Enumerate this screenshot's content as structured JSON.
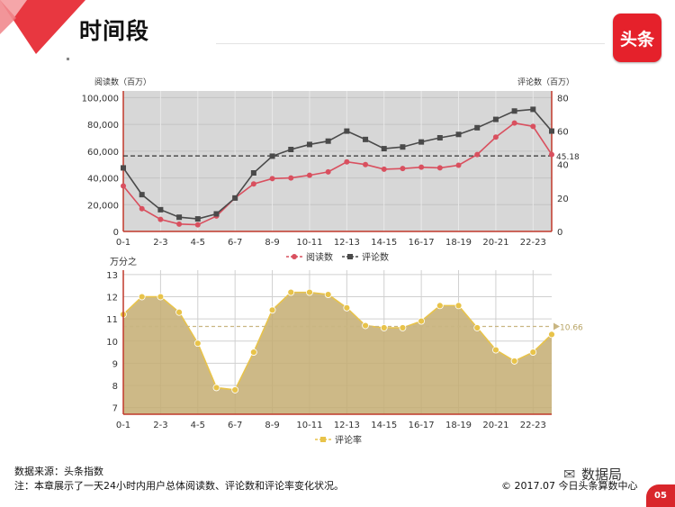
{
  "page": {
    "title": "时间段",
    "logo_text": "头条",
    "source": "数据来源：头条指数",
    "note": "注：本章展示了一天24小时内用户总体阅读数、评论数和评论率变化状况。",
    "copyright": "© 2017.07 今日头条算数中心",
    "watermark": "数据局",
    "page_number": "05",
    "brand_color": "#e5212b"
  },
  "chart_data": [
    {
      "type": "line",
      "title": "",
      "x": [
        "0-1",
        "1-2",
        "2-3",
        "3-4",
        "4-5",
        "5-6",
        "6-7",
        "7-8",
        "8-9",
        "9-10",
        "10-11",
        "11-12",
        "12-13",
        "13-14",
        "14-15",
        "15-16",
        "16-17",
        "17-18",
        "18-19",
        "19-20",
        "20-21",
        "21-22",
        "22-23",
        "23-24"
      ],
      "x_tick_labels": [
        "0-1",
        "2-3",
        "4-5",
        "6-7",
        "8-9",
        "10-11",
        "12-13",
        "14-15",
        "16-17",
        "18-19",
        "20-21",
        "22-23"
      ],
      "left_axis_label": "阅读数（百万）",
      "right_axis_label": "评论数（百万）",
      "left_ticks": [
        "100,000",
        "80,000",
        "60,000",
        "40,000",
        "20,000",
        "0"
      ],
      "right_ticks": [
        "80",
        "60",
        "40",
        "20",
        "0"
      ],
      "left_ylim": [
        0,
        105000
      ],
      "right_ylim": [
        0,
        84
      ],
      "grid": true,
      "legend_position": "bottom",
      "series": [
        {
          "name": "阅读数",
          "axis": "left",
          "color": "#d9505f",
          "values": [
            34000,
            17000,
            9000,
            5500,
            5000,
            11500,
            25000,
            35500,
            39500,
            40000,
            42000,
            44500,
            52000,
            50000,
            46500,
            47000,
            48000,
            47500,
            49500,
            57500,
            70500,
            81000,
            78500,
            57500
          ]
        },
        {
          "name": "评论数",
          "axis": "right",
          "color": "#4a4a4a",
          "values": [
            38,
            22,
            13,
            8.5,
            7.5,
            10.5,
            20,
            35,
            45,
            49,
            52,
            54,
            60,
            55,
            49.5,
            50.5,
            53.5,
            56,
            58,
            62,
            67,
            72,
            73,
            60
          ]
        }
      ],
      "reference_line": {
        "axis": "right",
        "value": 45.18,
        "label": "45.18"
      }
    },
    {
      "type": "area",
      "title": "",
      "ylabel": "万分之",
      "x": [
        "0-1",
        "1-2",
        "2-3",
        "3-4",
        "4-5",
        "5-6",
        "6-7",
        "7-8",
        "8-9",
        "9-10",
        "10-11",
        "11-12",
        "12-13",
        "13-14",
        "14-15",
        "15-16",
        "16-17",
        "17-18",
        "18-19",
        "19-20",
        "20-21",
        "21-22",
        "22-23",
        "23-24"
      ],
      "x_tick_labels": [
        "0-1",
        "2-3",
        "4-5",
        "6-7",
        "8-9",
        "10-11",
        "12-13",
        "14-15",
        "16-17",
        "18-19",
        "20-21",
        "22-23"
      ],
      "y_ticks": [
        "13",
        "12",
        "11",
        "10",
        "9",
        "8",
        "7"
      ],
      "ylim": [
        6.7,
        13.2
      ],
      "grid": true,
      "legend_position": "bottom",
      "series": [
        {
          "name": "评论率",
          "color": "#e8c34a",
          "values": [
            11.2,
            12.0,
            12.0,
            11.3,
            9.9,
            7.9,
            7.8,
            9.5,
            11.4,
            12.2,
            12.2,
            12.1,
            11.5,
            10.7,
            10.6,
            10.6,
            10.9,
            11.6,
            11.6,
            10.6,
            9.6,
            9.1,
            9.5,
            10.3
          ]
        }
      ],
      "reference_line": {
        "value": 10.66,
        "label": "10.66"
      }
    }
  ]
}
